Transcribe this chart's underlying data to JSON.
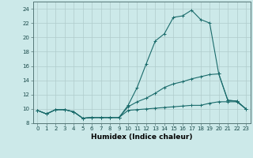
{
  "title": "",
  "xlabel": "Humidex (Indice chaleur)",
  "bg_color": "#cce9e9",
  "grid_color": "#b0cccc",
  "line_color": "#1a6b6b",
  "x": [
    0,
    1,
    2,
    3,
    4,
    5,
    6,
    7,
    8,
    9,
    10,
    11,
    12,
    13,
    14,
    15,
    16,
    17,
    18,
    19,
    20,
    21,
    22,
    23
  ],
  "line1": [
    9.8,
    9.3,
    9.9,
    9.9,
    9.6,
    8.7,
    8.8,
    8.8,
    8.8,
    8.8,
    10.5,
    13.0,
    16.3,
    19.5,
    20.5,
    22.8,
    23.0,
    23.8,
    22.5,
    22.0,
    14.9,
    11.2,
    11.1,
    10.0
  ],
  "line2": [
    9.8,
    9.3,
    9.9,
    9.9,
    9.6,
    8.7,
    8.8,
    8.8,
    8.8,
    8.8,
    10.3,
    11.0,
    11.5,
    12.2,
    13.0,
    13.5,
    13.8,
    14.2,
    14.5,
    14.8,
    14.9,
    11.2,
    11.1,
    10.0
  ],
  "line3": [
    9.8,
    9.3,
    9.9,
    9.9,
    9.6,
    8.7,
    8.8,
    8.8,
    8.8,
    8.8,
    9.8,
    9.9,
    10.0,
    10.1,
    10.2,
    10.3,
    10.4,
    10.5,
    10.5,
    10.8,
    11.0,
    11.0,
    11.0,
    10.0
  ],
  "xlim": [
    -0.5,
    23.5
  ],
  "ylim": [
    8,
    25
  ],
  "yticks": [
    8,
    10,
    12,
    14,
    16,
    18,
    20,
    22,
    24
  ],
  "xticks": [
    0,
    1,
    2,
    3,
    4,
    5,
    6,
    7,
    8,
    9,
    10,
    11,
    12,
    13,
    14,
    15,
    16,
    17,
    18,
    19,
    20,
    21,
    22,
    23
  ],
  "tick_fontsize": 5.0,
  "xlabel_fontsize": 6.5,
  "linewidth": 0.8,
  "markersize": 2.5
}
